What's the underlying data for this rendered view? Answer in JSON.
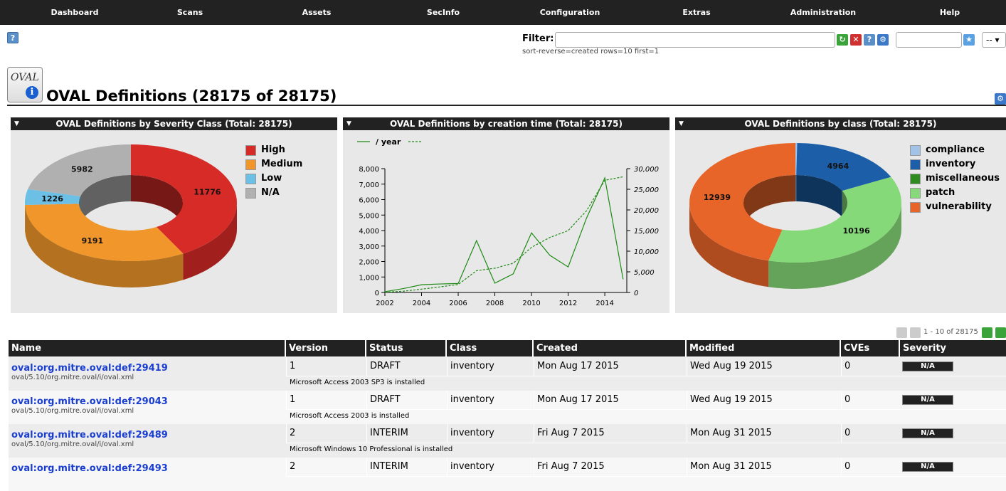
{
  "nav": [
    "Dashboard",
    "Scans",
    "Assets",
    "SecInfo",
    "Configuration",
    "Extras",
    "Administration",
    "Help"
  ],
  "filter": {
    "label": "Filter:",
    "value": "",
    "text": "sort-reverse=created rows=10 first=1",
    "select_value": "--"
  },
  "page": {
    "title": "OVAL Definitions (28175 of 28175)",
    "icon_text": "OVAL"
  },
  "colors": {
    "high": "#d62b27",
    "medium": "#f0962a",
    "low": "#6cc0e5",
    "na": "#b0b0b0",
    "compliance": "#a3c2e8",
    "inventory": "#1c5fa8",
    "miscellaneous": "#2e8b20",
    "patch": "#86d979",
    "vulnerability": "#e8652a"
  },
  "panels": [
    {
      "title": "OVAL Definitions by Severity Class (Total: 28175)"
    },
    {
      "title": "OVAL Definitions by creation time (Total: 28175)"
    },
    {
      "title": "OVAL Definitions by class (Total: 28175)"
    }
  ],
  "chart_data": [
    {
      "type": "pie",
      "title": "OVAL Definitions by Severity Class (Total: 28175)",
      "categories": [
        "High",
        "Medium",
        "Low",
        "N/A"
      ],
      "values": [
        11776,
        9191,
        1226,
        5982
      ],
      "colors": [
        "#d62b27",
        "#f0962a",
        "#6cc0e5",
        "#b0b0b0"
      ],
      "legend": "top-right"
    },
    {
      "type": "line",
      "title": "OVAL Definitions by creation time (Total: 28175)",
      "legend_label": "/ year",
      "x": [
        2002,
        2003,
        2004,
        2005,
        2006,
        2007,
        2008,
        2009,
        2010,
        2011,
        2012,
        2013,
        2014,
        2015
      ],
      "x_ticks": [
        "2002",
        "2004",
        "2006",
        "2008",
        "2010",
        "2012",
        "2014"
      ],
      "series": [
        {
          "name": "/ year",
          "style": "solid",
          "axis": "left",
          "values": [
            50,
            250,
            500,
            550,
            580,
            3350,
            600,
            1200,
            3850,
            2400,
            1650,
            4800,
            7400,
            850
          ]
        },
        {
          "style": "dashed",
          "axis": "right",
          "values": [
            50,
            300,
            800,
            1350,
            1930,
            5280,
            5880,
            7080,
            10930,
            13330,
            14980,
            19780,
            27180,
            28030
          ]
        }
      ],
      "y_left_ticks": [
        "0",
        "1,000",
        "2,000",
        "3,000",
        "4,000",
        "5,000",
        "6,000",
        "7,000",
        "8,000"
      ],
      "y_right_ticks": [
        "0",
        "5,000",
        "10,000",
        "15,000",
        "20,000",
        "25,000",
        "30,000"
      ],
      "ylim_left": [
        0,
        8000
      ],
      "ylim_right": [
        0,
        30000
      ],
      "xlim": [
        2002,
        2015.2
      ],
      "color": "#1e8a14"
    },
    {
      "type": "pie",
      "title": "OVAL Definitions by class (Total: 28175)",
      "categories": [
        "compliance",
        "inventory",
        "miscellaneous",
        "patch",
        "vulnerability"
      ],
      "values": [
        76,
        4964,
        0,
        10196,
        12939
      ],
      "labels": [
        "",
        "4964",
        "",
        "10196",
        "12939"
      ],
      "colors": [
        "#a3c2e8",
        "#1c5fa8",
        "#2e8b20",
        "#86d979",
        "#e8652a"
      ],
      "legend": "top-right"
    }
  ],
  "pager": {
    "text": "1 - 10 of 28175"
  },
  "table": {
    "headers": [
      "Name",
      "Version",
      "Status",
      "Class",
      "Created",
      "Modified",
      "CVEs",
      "Severity"
    ],
    "rows": [
      {
        "name": "oval:org.mitre.oval:def:29419",
        "file": "oval/5.10/org.mitre.oval/i/oval.xml",
        "version": "1",
        "status": "DRAFT",
        "class": "inventory",
        "created": "Mon Aug 17 2015",
        "modified": "Wed Aug 19 2015",
        "cves": "0",
        "severity": "N/A",
        "desc": "Microsoft Access 2003 SP3 is installed"
      },
      {
        "name": "oval:org.mitre.oval:def:29043",
        "file": "oval/5.10/org.mitre.oval/i/oval.xml",
        "version": "1",
        "status": "DRAFT",
        "class": "inventory",
        "created": "Mon Aug 17 2015",
        "modified": "Wed Aug 19 2015",
        "cves": "0",
        "severity": "N/A",
        "desc": "Microsoft Access 2003 is installed"
      },
      {
        "name": "oval:org.mitre.oval:def:29489",
        "file": "oval/5.10/org.mitre.oval/i/oval.xml",
        "version": "2",
        "status": "INTERIM",
        "class": "inventory",
        "created": "Fri Aug 7 2015",
        "modified": "Mon Aug 31 2015",
        "cves": "0",
        "severity": "N/A",
        "desc": "Microsoft Windows 10 Professional is installed"
      },
      {
        "name": "oval:org.mitre.oval:def:29493",
        "file": "",
        "version": "2",
        "status": "INTERIM",
        "class": "inventory",
        "created": "Fri Aug 7 2015",
        "modified": "Mon Aug 31 2015",
        "cves": "0",
        "severity": "N/A",
        "desc": ""
      }
    ]
  }
}
